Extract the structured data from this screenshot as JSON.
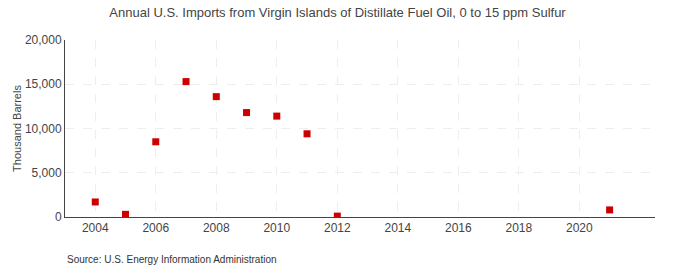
{
  "chart_data": {
    "type": "scatter",
    "title": "Annual U.S. Imports from Virgin Islands of Distillate Fuel Oil, 0 to 15 ppm Sulfur",
    "ylabel": "Thousand Barrels",
    "annotations": [
      "Source: U.S. Energy Information Administration"
    ],
    "x": [
      2004,
      2005,
      2006,
      2007,
      2008,
      2009,
      2010,
      2011,
      2012,
      2021
    ],
    "values": [
      1700,
      300,
      8500,
      15300,
      13600,
      11800,
      11400,
      9400,
      100,
      800
    ],
    "color": "#cc0000",
    "marker": "square",
    "xlim": [
      2003.0,
      2022.5
    ],
    "ylim": [
      0,
      20000
    ],
    "xticks": [
      2004,
      2006,
      2008,
      2010,
      2012,
      2014,
      2016,
      2018,
      2020
    ],
    "yticks": [
      0,
      {
        "value": 5000,
        "label": "5,000"
      },
      {
        "value": 10000,
        "label": "10,000"
      },
      {
        "value": 15000,
        "label": "15,000"
      },
      {
        "value": 20000,
        "label": "20,000"
      }
    ],
    "grid": true
  }
}
